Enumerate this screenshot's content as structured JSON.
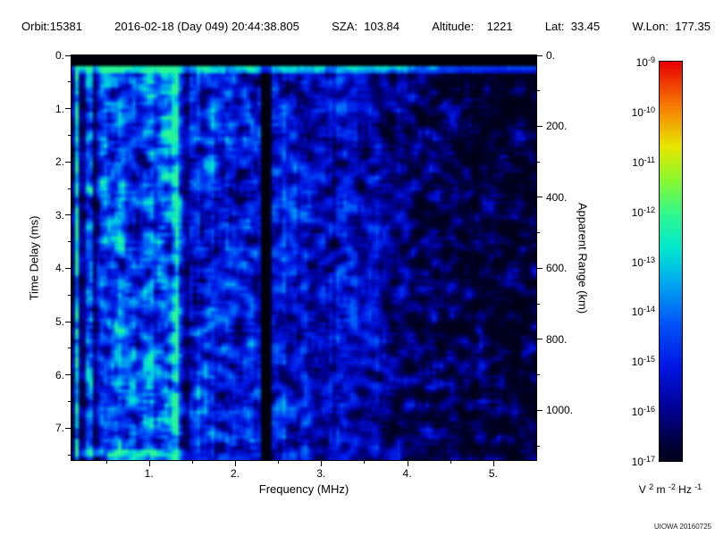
{
  "header": {
    "orbit": "Orbit:15381",
    "datetime": "2016-02-18 (Day 049) 20:44:38.805",
    "sza": "SZA:  103.84",
    "altitude": "Altitude:    1221",
    "lat": "Lat:  33.45",
    "wlon": "W.Lon:  177.35"
  },
  "credit": "UIOWA 20160725",
  "chart_data": {
    "type": "heatmap",
    "subtype": "radar-ionogram-spectrogram",
    "xlabel": "Frequency (MHz)",
    "ylabel_left": "Time Delay (ms)",
    "ylabel_right": "Apparent Range (km)",
    "x_range_mhz": [
      0.1,
      5.5
    ],
    "y_range_ms": [
      0,
      7.6
    ],
    "x_major_ticks": [
      1,
      2,
      3,
      4,
      5
    ],
    "x_tick_labels": [
      "1.",
      "2.",
      "3.",
      "4.",
      "5."
    ],
    "y_major_ticks": [
      0,
      1,
      2,
      3,
      4,
      5,
      6,
      7
    ],
    "y_tick_labels": [
      "0.",
      "1.",
      "2.",
      "3.",
      "4.",
      "5.",
      "6.",
      "7."
    ],
    "right_ticks_km": [
      0,
      200,
      400,
      600,
      800,
      1000
    ],
    "right_tick_labels": [
      "0.",
      "200.",
      "400.",
      "600.",
      "800.",
      "1000."
    ],
    "km_per_ms": 150,
    "colorbar": {
      "base": "10",
      "exponents": [
        "-9",
        "-10",
        "-11",
        "-12",
        "-13",
        "-14",
        "-15",
        "-16",
        "-17"
      ],
      "max_value": "1e-9",
      "min_value": "1e-17",
      "unit_segments": [
        {
          "text": "V "
        },
        {
          "text": "2",
          "sup": true
        },
        {
          "text": " m "
        },
        {
          "text": "-2",
          "sup": true
        },
        {
          "text": " Hz "
        },
        {
          "text": "-1",
          "sup": true
        }
      ]
    },
    "colormap_stops": [
      {
        "v": 0.0,
        "c": "#000000"
      },
      {
        "v": 0.08,
        "c": "#000028"
      },
      {
        "v": 0.18,
        "c": "#000092"
      },
      {
        "v": 0.28,
        "c": "#0016E4"
      },
      {
        "v": 0.38,
        "c": "#0052F8"
      },
      {
        "v": 0.48,
        "c": "#00AAF0"
      },
      {
        "v": 0.56,
        "c": "#00E8D0"
      },
      {
        "v": 0.64,
        "c": "#30F890"
      },
      {
        "v": 0.72,
        "c": "#88F830"
      },
      {
        "v": 0.8,
        "c": "#E8E800"
      },
      {
        "v": 0.9,
        "c": "#F87800"
      },
      {
        "v": 1.0,
        "c": "#E80000"
      }
    ],
    "seed": 15381,
    "features": {
      "top_black_ms": 0.18,
      "surface_line": {
        "t_ms": 0.26,
        "amp": 0.5
      },
      "bottom_streak": {
        "t_ms": 7.48,
        "f_max": 1.6,
        "amp": 0.28
      },
      "vertical_bright": [
        {
          "f": 0.16,
          "w": 0.05,
          "amp": 0.3
        },
        {
          "f": 0.3,
          "w": 0.04,
          "amp": 0.2
        },
        {
          "f": 0.47,
          "w": 0.05,
          "amp": 0.1
        },
        {
          "f": 0.66,
          "w": 0.05,
          "amp": 0.1
        },
        {
          "f": 1.22,
          "w": 0.03,
          "amp": 0.1
        },
        {
          "f": 1.31,
          "w": 0.05,
          "amp": 0.48
        }
      ],
      "vertical_dark": [
        {
          "f": 0.225,
          "w": 0.03,
          "factor": 0.3
        },
        {
          "f": 0.385,
          "w": 0.03,
          "factor": 0.5
        },
        {
          "f": 1.43,
          "w": 0.035,
          "factor": 0.55
        },
        {
          "f": 2.36,
          "w": 0.08,
          "factor": 0.07
        }
      ],
      "base_profile": [
        [
          0.1,
          0.26
        ],
        [
          0.25,
          0.4
        ],
        [
          0.5,
          0.44
        ],
        [
          1.0,
          0.44
        ],
        [
          1.6,
          0.42
        ],
        [
          2.2,
          0.38
        ],
        [
          2.6,
          0.34
        ],
        [
          3.0,
          0.31
        ],
        [
          3.6,
          0.28
        ],
        [
          4.2,
          0.24
        ],
        [
          4.6,
          0.21
        ],
        [
          5.5,
          0.2
        ]
      ],
      "gamma_profile": [
        [
          0.1,
          1.0
        ],
        [
          3.6,
          1.0
        ],
        [
          4.2,
          1.8
        ],
        [
          4.8,
          2.4
        ],
        [
          5.5,
          2.6
        ]
      ],
      "noise_floor": 0.25,
      "noise_gain": 1.0
    }
  }
}
